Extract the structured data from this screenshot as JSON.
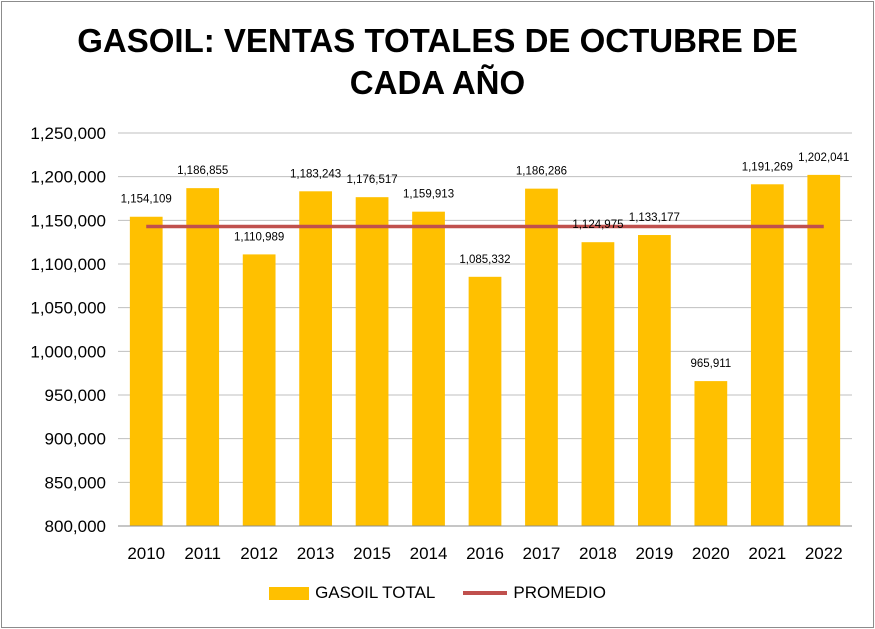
{
  "colors": {
    "bar": "#FFC000",
    "line": "#C0504D",
    "grid": "#BFBFBF"
  },
  "chart_data": {
    "type": "bar",
    "title_line1": "GASOIL: VENTAS TOTALES DE OCTUBRE DE",
    "title_line2": "CADA AÑO",
    "categories": [
      "2010",
      "2011",
      "2012",
      "2013",
      "2015",
      "2014",
      "2016",
      "2017",
      "2018",
      "2019",
      "2020",
      "2021",
      "2022"
    ],
    "series": [
      {
        "name": "GASOIL TOTAL",
        "type": "bar",
        "values": [
          1154109,
          1186855,
          1110989,
          1183243,
          1176517,
          1159913,
          1085332,
          1186286,
          1124975,
          1133177,
          965911,
          1191269,
          1202041
        ],
        "labels": [
          "1,154,109",
          "1,186,855",
          "1,110,989",
          "1,183,243",
          "1,176,517",
          "1,159,913",
          "1,085,332",
          "1,186,286",
          "1,124,975",
          "1,133,177",
          "965,911",
          "1,191,269",
          "1,202,041"
        ]
      },
      {
        "name": "PROMEDIO",
        "type": "line",
        "value": 1143000
      }
    ],
    "ylim": [
      800000,
      1250000
    ],
    "yticks": [
      800000,
      850000,
      900000,
      950000,
      1000000,
      1050000,
      1100000,
      1150000,
      1200000,
      1250000
    ],
    "ytick_labels": [
      "800,000",
      "850,000",
      "900,000",
      "950,000",
      "1,000,000",
      "1,050,000",
      "1,100,000",
      "1,150,000",
      "1,200,000",
      "1,250,000"
    ],
    "legend": [
      "GASOIL TOTAL",
      "PROMEDIO"
    ],
    "legend_position": "bottom",
    "grid": true
  }
}
